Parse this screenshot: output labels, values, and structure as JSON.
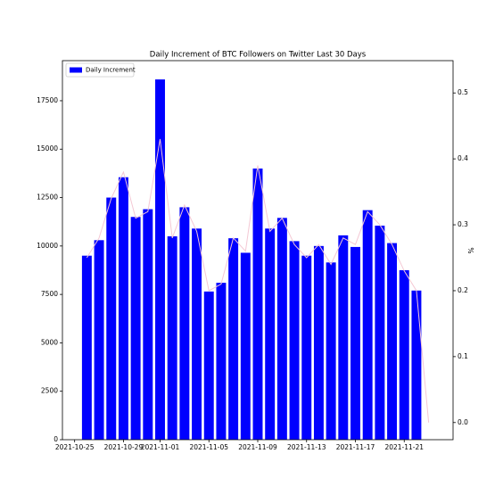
{
  "chart_data": {
    "type": "bar_line",
    "title": "Daily Increment of BTC Followers on Twitter Last 30 Days",
    "y2_label": "%",
    "legend": "upper left",
    "series": [
      {
        "name": "Daily Increment",
        "type": "bar",
        "color": "#0000ff",
        "x": [
          "2021-10-26",
          "2021-10-27",
          "2021-10-28",
          "2021-10-29",
          "2021-10-30",
          "2021-10-31",
          "2021-11-01",
          "2021-11-02",
          "2021-11-03",
          "2021-11-04",
          "2021-11-05",
          "2021-11-06",
          "2021-11-07",
          "2021-11-08",
          "2021-11-09",
          "2021-11-10",
          "2021-11-11",
          "2021-11-12",
          "2021-11-13",
          "2021-11-14",
          "2021-11-15",
          "2021-11-16",
          "2021-11-17",
          "2021-11-18",
          "2021-11-19",
          "2021-11-20",
          "2021-11-21",
          "2021-11-22"
        ],
        "values": [
          9500,
          10300,
          12500,
          13550,
          11500,
          11900,
          18600,
          10500,
          12000,
          10900,
          7650,
          8100,
          10400,
          9650,
          14000,
          10900,
          11450,
          10250,
          9500,
          10000,
          9150,
          10550,
          9950,
          11850,
          11050,
          10150,
          8750,
          7700
        ]
      },
      {
        "type": "line",
        "axis": "y2",
        "color": "#f4c8d4",
        "x": [
          "2021-10-26",
          "2021-10-27",
          "2021-10-28",
          "2021-10-29",
          "2021-10-30",
          "2021-10-31",
          "2021-11-01",
          "2021-11-02",
          "2021-11-03",
          "2021-11-04",
          "2021-11-05",
          "2021-11-06",
          "2021-11-07",
          "2021-11-08",
          "2021-11-09",
          "2021-11-10",
          "2021-11-11",
          "2021-11-12",
          "2021-11-13",
          "2021-11-14",
          "2021-11-15",
          "2021-11-16",
          "2021-11-17",
          "2021-11-18",
          "2021-11-19",
          "2021-11-20",
          "2021-11-21",
          "2021-11-22",
          "2021-11-23"
        ],
        "values": [
          0.25,
          0.28,
          0.34,
          0.38,
          0.31,
          0.32,
          0.43,
          0.28,
          0.33,
          0.29,
          0.2,
          0.21,
          0.28,
          0.26,
          0.39,
          0.29,
          0.31,
          0.27,
          0.25,
          0.27,
          0.24,
          0.28,
          0.27,
          0.32,
          0.3,
          0.27,
          0.23,
          0.2,
          0.0
        ]
      }
    ],
    "xlim": [
      "2021-10-24",
      "2021-11-25"
    ],
    "xticks": [
      "2021-10-25",
      "2021-10-29",
      "2021-11-01",
      "2021-11-05",
      "2021-11-09",
      "2021-11-13",
      "2021-11-17",
      "2021-11-21"
    ],
    "ylim": [
      0,
      19570
    ],
    "yticks": [
      0,
      2500,
      5000,
      7500,
      10000,
      12500,
      15000,
      17500
    ],
    "y2lim": [
      -0.026,
      0.549
    ],
    "y2ticks": [
      {
        "value": 0,
        "label": "0.0"
      },
      0.1,
      0.2,
      0.3,
      0.4,
      0.5
    ]
  }
}
